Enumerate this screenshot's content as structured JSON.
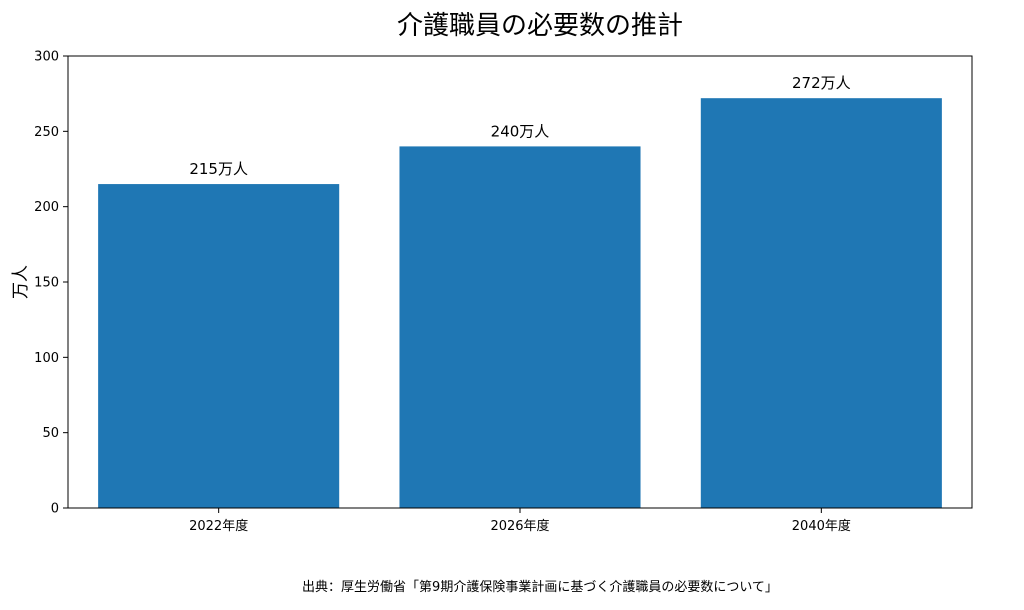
{
  "chart_data": {
    "type": "bar",
    "title": "介護職員の必要数の推計",
    "xlabel": "",
    "ylabel": "万人",
    "categories": [
      "2022年度",
      "2026年度",
      "2040年度"
    ],
    "values": [
      215,
      240,
      272
    ],
    "data_labels": [
      "215万人",
      "240万人",
      "272万人"
    ],
    "ylim": [
      0,
      300
    ],
    "yticks": [
      0,
      50,
      100,
      150,
      200,
      250,
      300
    ],
    "ytick_labels": [
      "0",
      "50",
      "100",
      "150",
      "200",
      "250",
      "300"
    ],
    "bar_color": "#1f77b4",
    "grid": false,
    "legend": "none",
    "source_note": "出典：厚生労働省「第9期介護保険事業計画に基づく介護職員の必要数について」"
  }
}
